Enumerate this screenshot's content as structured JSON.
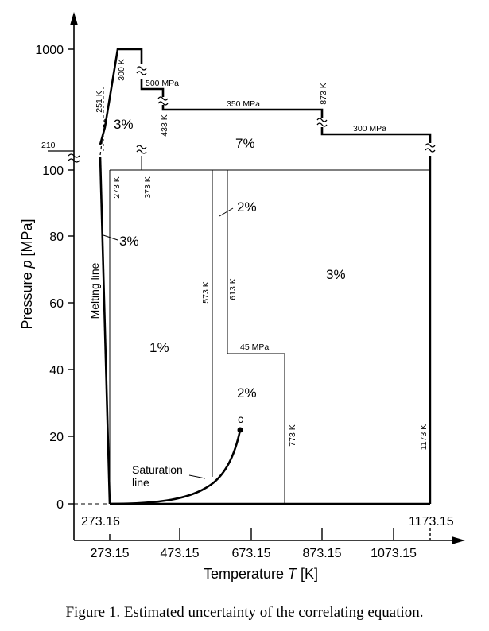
{
  "axes": {
    "xlabel_prefix": "Temperature ",
    "xlabel_var": "T",
    "xlabel_unit": " [K]",
    "ylabel_prefix": "Pressure ",
    "ylabel_var": "p",
    "ylabel_unit": " [MPa]",
    "x_ticks": [
      "273.15",
      "473.15",
      "673.15",
      "873.15",
      "1073.15"
    ],
    "y_ticks_lower": [
      "0",
      "20",
      "40",
      "60",
      "80",
      "100"
    ],
    "y_ticks_upper": [
      "210",
      "1000"
    ],
    "x_special": [
      "273.16",
      "1173.15"
    ]
  },
  "regions": {
    "r_upper_left": "3%",
    "r_upper_mid": "7%",
    "r_left_small": "3%",
    "r_mid_small": "2%",
    "r_right": "3%",
    "r_center": "1%",
    "r_center2": "2%"
  },
  "labels": {
    "k251": "251 K",
    "k300": "300 K",
    "k273": "273 K",
    "k373": "373 K",
    "k433": "433 K",
    "k573": "573 K",
    "k613": "613 K",
    "k773": "773 K",
    "k873": "873 K",
    "k1173": "1173 K",
    "p500": "500 MPa",
    "p350": "350 MPa",
    "p300": "300 MPa",
    "p45": "45 MPa",
    "melting": "Melting line",
    "saturation1": "Saturation",
    "saturation2": "line",
    "critical": "c"
  },
  "caption": "Figure 1. Estimated uncertainty of the correlating equation."
}
